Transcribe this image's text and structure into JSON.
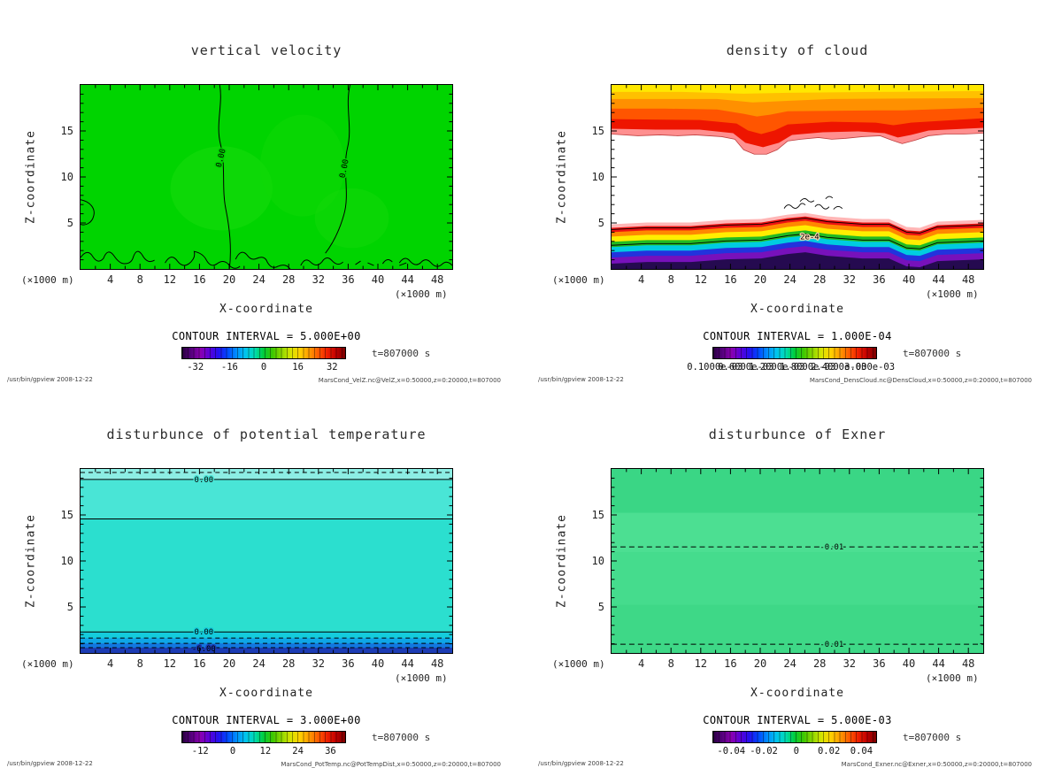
{
  "axes": {
    "xlabel": "X-coordinate",
    "ylabel": "Z-coordinate",
    "unit": "(×1000 m)",
    "x_ticks": [
      4,
      8,
      12,
      16,
      20,
      24,
      28,
      32,
      36,
      40,
      44,
      48
    ],
    "y_ticks": [
      5,
      10,
      15
    ],
    "x_max": 50,
    "y_max": 20
  },
  "panels": [
    {
      "title": "vertical velocity",
      "contour_interval_label": "CONTOUR INTERVAL = 5.000E+00",
      "time_label": "t=807000 s",
      "footer_left": "/usr/bin/gpview  2008-12-22",
      "footer_right": "MarsCond_VelZ.nc@VelZ,x=0:50000,z=0:20000,t=807000",
      "contour_labels": [
        "0.00",
        "0.00"
      ],
      "colorbar": {
        "labels": [
          "-32",
          "-16",
          "0",
          "16",
          "32"
        ],
        "positions": [
          8,
          29,
          50,
          71,
          92
        ]
      }
    },
    {
      "title": "density of cloud",
      "contour_interval_label": "CONTOUR INTERVAL = 1.000E-04",
      "time_label": "t=807000 s",
      "footer_left": "/usr/bin/gpview  2008-12-22",
      "footer_right": "MarsCond_DensCloud.nc@DensCloud,x=0:50000,z=0:20000,t=807000",
      "contour_labels": [
        "2e-4"
      ],
      "colorbar": {
        "labels": [
          "0.1000e-03",
          "0.6000e-03",
          "1.2000e-03",
          "1.8000e-03",
          "2.4000e-03",
          "3.000e-03"
        ],
        "positions": [
          1,
          20,
          39,
          58,
          77,
          96
        ]
      }
    },
    {
      "title": "disturbunce of potential temperature",
      "contour_interval_label": "CONTOUR INTERVAL = 3.000E+00",
      "time_label": "t=807000 s",
      "footer_left": "/usr/bin/gpview  2008-12-22",
      "footer_right": "MarsCond_PotTemp.nc@PotTempDist,x=0:50000,z=0:20000,t=807000",
      "contour_labels": [
        "0.00",
        "0.00",
        "-6.00"
      ],
      "colorbar": {
        "labels": [
          "-12",
          "0",
          "12",
          "24",
          "36"
        ],
        "positions": [
          11,
          31,
          51,
          71,
          91
        ]
      }
    },
    {
      "title": "disturbunce of Exner",
      "contour_interval_label": "CONTOUR INTERVAL = 5.000E-03",
      "time_label": "t=807000 s",
      "footer_left": "/usr/bin/gpview  2008-12-22",
      "footer_right": "MarsCond_Exner.nc@Exner,x=0:50000,z=0:20000,t=807000",
      "contour_labels": [
        "-0.01",
        "-0.01"
      ],
      "colorbar": {
        "labels": [
          "-0.04",
          "-0.02",
          "0",
          "0.02",
          "0.04"
        ],
        "positions": [
          11,
          31,
          51,
          71,
          91
        ]
      }
    }
  ],
  "chart_data": [
    {
      "type": "heatmap",
      "title": "vertical velocity",
      "xlabel": "X-coordinate (×1000 m)",
      "ylabel": "Z-coordinate (×1000 m)",
      "xlim": [
        0,
        50
      ],
      "ylim": [
        0,
        20
      ],
      "x_ticks": [
        4,
        8,
        12,
        16,
        20,
        24,
        28,
        32,
        36,
        40,
        44,
        48
      ],
      "y_ticks": [
        5,
        10,
        15
      ],
      "contour_interval": 5.0,
      "colorbar_ticks": [
        -32,
        -16,
        0,
        16,
        32
      ],
      "time_s": 807000,
      "summary": "Field is approximately 0 everywhere (uniform green). Meandering 0.00 contour lines run from top to bottom near x≈19 and x≈36, plus small-amplitude squiggly zero contours hugging the surface below z≈1 and a small closed contour at the left edge near z≈6."
    },
    {
      "type": "heatmap",
      "title": "density of cloud",
      "xlabel": "X-coordinate (×1000 m)",
      "ylabel": "Z-coordinate (×1000 m)",
      "xlim": [
        0,
        50
      ],
      "ylim": [
        0,
        20
      ],
      "x_ticks": [
        4,
        8,
        12,
        16,
        20,
        24,
        28,
        32,
        36,
        40,
        44,
        48
      ],
      "y_ticks": [
        5,
        10,
        15
      ],
      "contour_interval": 0.0001,
      "colorbar_ticks": [
        0.0001,
        0.0006,
        0.0012,
        0.0018,
        0.0024,
        0.003
      ],
      "time_s": 807000,
      "summary": "Upper cloud layer above z≈14.5 with density increasing upward to ≈3e-3 (yellow) at z=20; its lower boundary dips near x≈17-22 and x≈37-40. Clear air (white, ≈0) between z≈6 and z≈14. Thin stratified cloud deck between z≈1 and z≈5.5 spanning all x, with a 2e-4 contour near z≈4 and turbulent contour wisps around x≈24-30, z≈6."
    },
    {
      "type": "heatmap",
      "title": "disturbunce of potential temperature",
      "xlabel": "X-coordinate (×1000 m)",
      "ylabel": "Z-coordinate (×1000 m)",
      "xlim": [
        0,
        50
      ],
      "ylim": [
        0,
        20
      ],
      "x_ticks": [
        4,
        8,
        12,
        16,
        20,
        24,
        28,
        32,
        36,
        40,
        44,
        48
      ],
      "y_ticks": [
        5,
        10,
        15
      ],
      "contour_interval": 3.0,
      "colorbar_ticks": [
        -12,
        0,
        12,
        24,
        36
      ],
      "time_s": 807000,
      "summary": "Horizontally uniform layered field (cyan ≈ 0 to slightly positive). 0.00 contours at z≈18.8 and z≈2.3; dashed negative contour near the top edge; values drop through -6.00 in dashed contours below z≈2, reaching dark blue minima at the surface."
    },
    {
      "type": "heatmap",
      "title": "disturbunce of Exner",
      "xlabel": "X-coordinate (×1000 m)",
      "ylabel": "Z-coordinate (×1000 m)",
      "xlim": [
        0,
        50
      ],
      "ylim": [
        0,
        20
      ],
      "x_ticks": [
        4,
        8,
        12,
        16,
        20,
        24,
        28,
        32,
        36,
        40,
        44,
        48
      ],
      "y_ticks": [
        5,
        10,
        15
      ],
      "contour_interval": 0.005,
      "colorbar_ticks": [
        -0.04,
        -0.02,
        0,
        0.02,
        0.04
      ],
      "time_s": 807000,
      "summary": "Nearly uniform small-magnitude field (green). Horizontal dashed -0.01 contours stretch across the full width at z≈11.5 and z≈1."
    }
  ]
}
